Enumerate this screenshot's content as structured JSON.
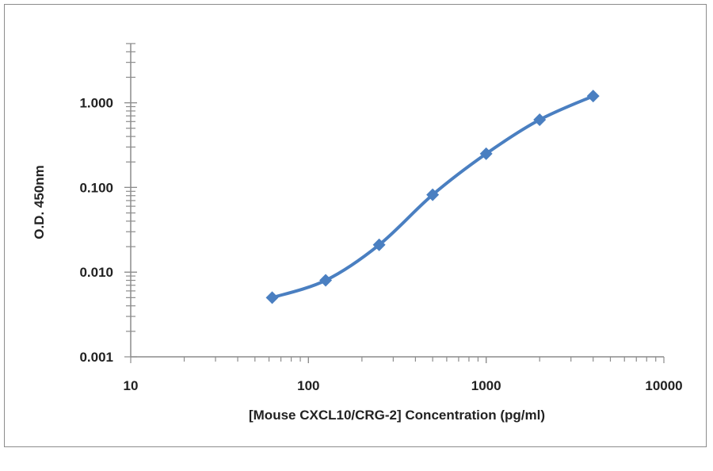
{
  "chart_data": {
    "type": "line",
    "title": "",
    "xlabel": "[Mouse CXCL10/CRG-2] Concentration (pg/ml)",
    "ylabel": "O.D. 450nm",
    "x_scale": "log",
    "y_scale": "log",
    "xlim": [
      10,
      10000
    ],
    "ylim": [
      0.001,
      5
    ],
    "x_ticks": [
      "10",
      "100",
      "1000",
      "10000"
    ],
    "y_ticks": [
      "0.001",
      "0.010",
      "0.100",
      "1.000"
    ],
    "grid": false,
    "legend": "none",
    "smoothed": true,
    "marker": "diamond",
    "color": "#4a7fc1",
    "series": [
      {
        "x": [
          62.5,
          125,
          250,
          500,
          1000,
          2000,
          4000
        ],
        "y": [
          0.005,
          0.008,
          0.021,
          0.082,
          0.25,
          0.63,
          1.2
        ]
      }
    ]
  }
}
